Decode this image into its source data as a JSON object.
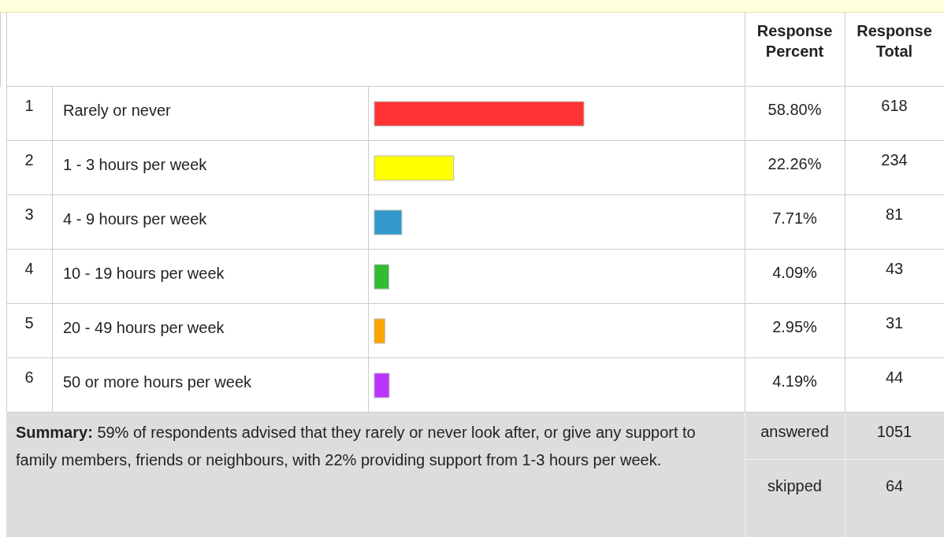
{
  "chart_data": {
    "type": "bar",
    "orientation": "horizontal",
    "categories": [
      "Rarely or never",
      "1 - 3 hours per week",
      "4 - 9 hours per week",
      "10 - 19 hours per week",
      "20 - 49 hours per week",
      "50 or more hours per week"
    ],
    "values": [
      58.8,
      22.26,
      7.71,
      4.09,
      2.95,
      4.19
    ],
    "colors": [
      "#ff3333",
      "#ffff00",
      "#3399cc",
      "#33bb33",
      "#ffa500",
      "#bb33ff"
    ],
    "value_labels": [
      "58.80%",
      "22.26%",
      "7.71%",
      "4.09%",
      "2.95%",
      "4.19%"
    ],
    "annotations": [
      "Response Percent",
      "Response Total",
      "618",
      "234",
      "81",
      "43",
      "31",
      "44",
      "Summary:",
      "59% of respondents advised that they rarely or never look after, or give any support to family members, friends or neighbours, with 22% providing support from 1-3 hours per week.",
      "answered",
      "1051",
      "skipped",
      "64",
      "1",
      "2",
      "3",
      "4",
      "5",
      "6"
    ]
  }
}
